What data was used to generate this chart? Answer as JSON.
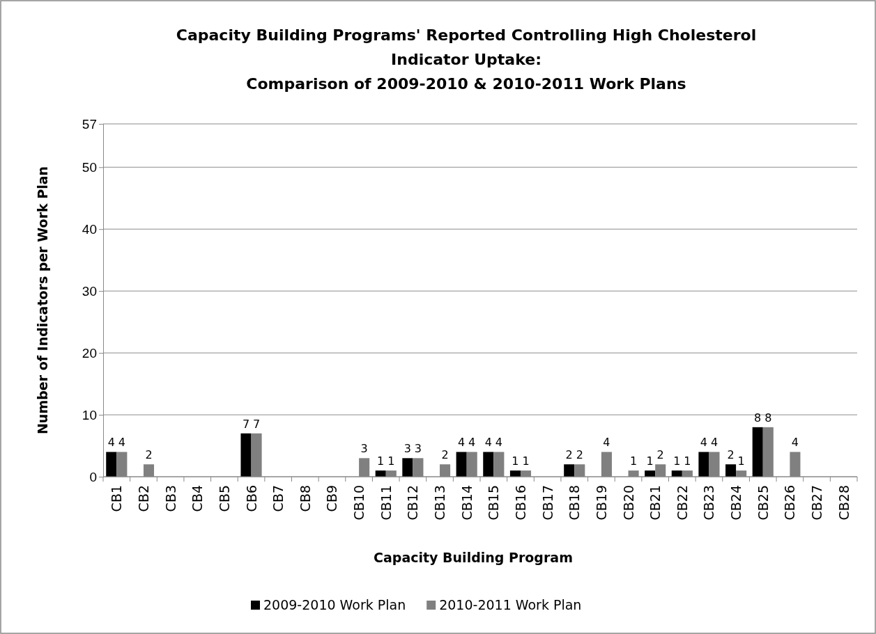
{
  "chart_data": {
    "type": "bar",
    "title": "Capacity Building Programs' Reported Controlling High Cholesterol Indicator Uptake:\nComparison of 2009-2010 & 2010-2011 Work Plans",
    "xlabel": "Capacity Building Program",
    "ylabel": "Number of Indicators per Work Plan",
    "categories": [
      "CB1",
      "CB2",
      "CB3",
      "CB4",
      "CB5",
      "CB6",
      "CB7",
      "CB8",
      "CB9",
      "CB10",
      "CB11",
      "CB12",
      "CB13",
      "CB14",
      "CB15",
      "CB16",
      "CB17",
      "CB18",
      "CB19",
      "CB20",
      "CB21",
      "CB22",
      "CB23",
      "CB24",
      "CB25",
      "CB26",
      "CB27",
      "CB28"
    ],
    "series": [
      {
        "name": "2009-2010 Work Plan",
        "color": "#000000",
        "values": [
          4,
          0,
          0,
          0,
          0,
          7,
          0,
          0,
          0,
          0,
          1,
          3,
          0,
          4,
          4,
          1,
          0,
          2,
          0,
          0,
          1,
          1,
          4,
          2,
          8,
          0,
          0,
          0
        ],
        "value_labels": [
          "4",
          null,
          null,
          null,
          null,
          "7",
          null,
          null,
          null,
          null,
          "1",
          "3",
          null,
          "4",
          "4",
          "1",
          null,
          "2",
          null,
          null,
          "1",
          "1",
          "4",
          "2",
          "8",
          null,
          null,
          null
        ]
      },
      {
        "name": "2010-2011 Work Plan",
        "color": "#808080",
        "values": [
          4,
          2,
          0,
          0,
          0,
          7,
          0,
          0,
          0,
          3,
          1,
          3,
          2,
          4,
          4,
          1,
          0,
          2,
          4,
          1,
          2,
          1,
          4,
          1,
          8,
          4,
          0,
          0
        ],
        "value_labels": [
          "4",
          "2",
          null,
          null,
          null,
          "7",
          null,
          null,
          null,
          "3",
          "1",
          "3",
          "2",
          "4",
          "4",
          "1",
          null,
          "2",
          "4",
          "1",
          "2",
          "1",
          "4",
          "1",
          "8",
          "4",
          null,
          null
        ]
      }
    ],
    "ylim": [
      0,
      57
    ],
    "yticks": [
      0,
      10,
      20,
      30,
      40,
      50,
      57
    ],
    "grid": "y",
    "legend": "bottom"
  }
}
